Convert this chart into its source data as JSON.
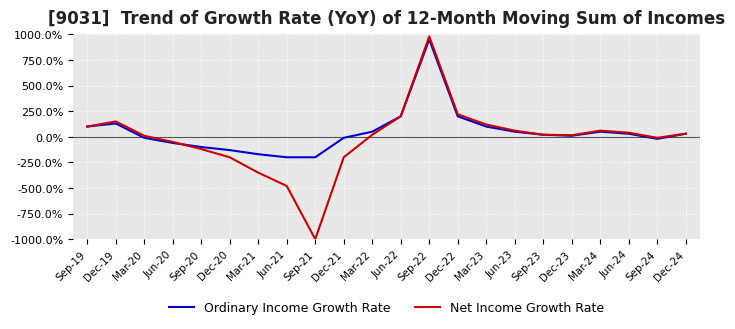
{
  "title": "[9031]  Trend of Growth Rate (YoY) of 12-Month Moving Sum of Incomes",
  "title_fontsize": 12,
  "ylim": [
    -1000,
    1000
  ],
  "yticks": [
    -1000,
    -750,
    -500,
    -250,
    0,
    250,
    500,
    750,
    1000
  ],
  "yticklabels": [
    "-1000.0%",
    "-750.0%",
    "-500.0%",
    "-250.0%",
    "0.0%",
    "250.0%",
    "500.0%",
    "750.0%",
    "1000.0%"
  ],
  "background_color": "#ffffff",
  "plot_bg_color": "#e8e8e8",
  "grid_color": "#ffffff",
  "ordinary_color": "#0000cc",
  "net_color": "#cc0000",
  "legend_ordinary": "Ordinary Income Growth Rate",
  "legend_net": "Net Income Growth Rate",
  "x_labels": [
    "Sep-19",
    "Dec-19",
    "Mar-20",
    "Jun-20",
    "Sep-20",
    "Dec-20",
    "Mar-21",
    "Jun-21",
    "Sep-21",
    "Dec-21",
    "Mar-22",
    "Jun-22",
    "Sep-22",
    "Dec-22",
    "Mar-23",
    "Jun-23",
    "Sep-23",
    "Dec-23",
    "Mar-24",
    "Jun-24",
    "Sep-24",
    "Dec-24"
  ],
  "ordinary_y": [
    100.0,
    130.0,
    -10.0,
    -60.0,
    -100.0,
    -130.0,
    -170.0,
    -200.0,
    -200.0,
    -10.0,
    50.0,
    200.0,
    950.0,
    200.0,
    100.0,
    50.0,
    20.0,
    10.0,
    50.0,
    30.0,
    -20.0,
    30.0
  ],
  "net_y": [
    100.0,
    150.0,
    10.0,
    -50.0,
    -120.0,
    -200.0,
    -350.0,
    -480.0,
    -1000.0,
    -200.0,
    20.0,
    200.0,
    980.0,
    220.0,
    120.0,
    60.0,
    20.0,
    15.0,
    60.0,
    40.0,
    -10.0,
    30.0
  ]
}
